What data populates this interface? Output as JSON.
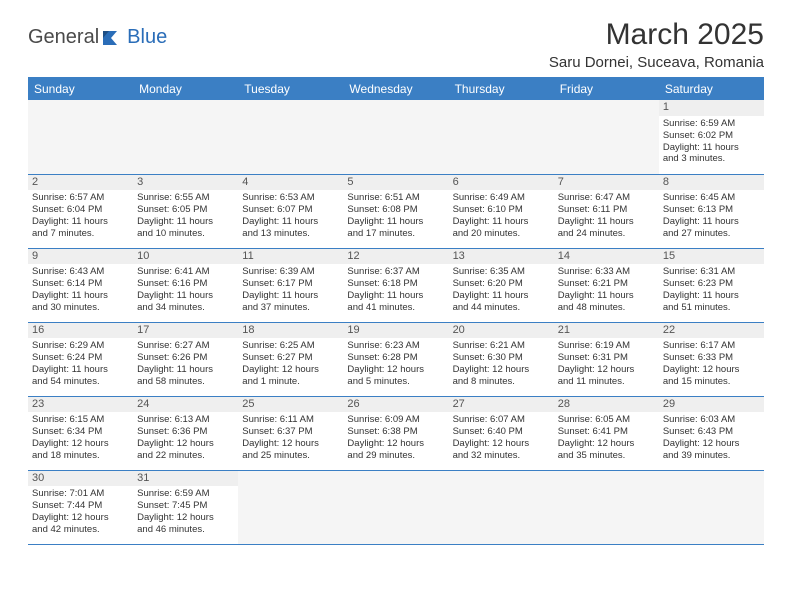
{
  "brand": {
    "part1": "General",
    "part2": "Blue"
  },
  "title": "March 2025",
  "location": "Saru Dornei, Suceava, Romania",
  "colors": {
    "header_bg": "#3b7fc4",
    "header_text": "#ffffff",
    "brand_accent": "#2a6db8",
    "empty_bg": "#f5f5f5",
    "daynum_bg": "#efefef",
    "border": "#3b7fc4"
  },
  "weekdays": [
    "Sunday",
    "Monday",
    "Tuesday",
    "Wednesday",
    "Thursday",
    "Friday",
    "Saturday"
  ],
  "weeks": [
    [
      null,
      null,
      null,
      null,
      null,
      null,
      {
        "n": "1",
        "sr": "Sunrise: 6:59 AM",
        "ss": "Sunset: 6:02 PM",
        "dl1": "Daylight: 11 hours",
        "dl2": "and 3 minutes."
      }
    ],
    [
      {
        "n": "2",
        "sr": "Sunrise: 6:57 AM",
        "ss": "Sunset: 6:04 PM",
        "dl1": "Daylight: 11 hours",
        "dl2": "and 7 minutes."
      },
      {
        "n": "3",
        "sr": "Sunrise: 6:55 AM",
        "ss": "Sunset: 6:05 PM",
        "dl1": "Daylight: 11 hours",
        "dl2": "and 10 minutes."
      },
      {
        "n": "4",
        "sr": "Sunrise: 6:53 AM",
        "ss": "Sunset: 6:07 PM",
        "dl1": "Daylight: 11 hours",
        "dl2": "and 13 minutes."
      },
      {
        "n": "5",
        "sr": "Sunrise: 6:51 AM",
        "ss": "Sunset: 6:08 PM",
        "dl1": "Daylight: 11 hours",
        "dl2": "and 17 minutes."
      },
      {
        "n": "6",
        "sr": "Sunrise: 6:49 AM",
        "ss": "Sunset: 6:10 PM",
        "dl1": "Daylight: 11 hours",
        "dl2": "and 20 minutes."
      },
      {
        "n": "7",
        "sr": "Sunrise: 6:47 AM",
        "ss": "Sunset: 6:11 PM",
        "dl1": "Daylight: 11 hours",
        "dl2": "and 24 minutes."
      },
      {
        "n": "8",
        "sr": "Sunrise: 6:45 AM",
        "ss": "Sunset: 6:13 PM",
        "dl1": "Daylight: 11 hours",
        "dl2": "and 27 minutes."
      }
    ],
    [
      {
        "n": "9",
        "sr": "Sunrise: 6:43 AM",
        "ss": "Sunset: 6:14 PM",
        "dl1": "Daylight: 11 hours",
        "dl2": "and 30 minutes."
      },
      {
        "n": "10",
        "sr": "Sunrise: 6:41 AM",
        "ss": "Sunset: 6:16 PM",
        "dl1": "Daylight: 11 hours",
        "dl2": "and 34 minutes."
      },
      {
        "n": "11",
        "sr": "Sunrise: 6:39 AM",
        "ss": "Sunset: 6:17 PM",
        "dl1": "Daylight: 11 hours",
        "dl2": "and 37 minutes."
      },
      {
        "n": "12",
        "sr": "Sunrise: 6:37 AM",
        "ss": "Sunset: 6:18 PM",
        "dl1": "Daylight: 11 hours",
        "dl2": "and 41 minutes."
      },
      {
        "n": "13",
        "sr": "Sunrise: 6:35 AM",
        "ss": "Sunset: 6:20 PM",
        "dl1": "Daylight: 11 hours",
        "dl2": "and 44 minutes."
      },
      {
        "n": "14",
        "sr": "Sunrise: 6:33 AM",
        "ss": "Sunset: 6:21 PM",
        "dl1": "Daylight: 11 hours",
        "dl2": "and 48 minutes."
      },
      {
        "n": "15",
        "sr": "Sunrise: 6:31 AM",
        "ss": "Sunset: 6:23 PM",
        "dl1": "Daylight: 11 hours",
        "dl2": "and 51 minutes."
      }
    ],
    [
      {
        "n": "16",
        "sr": "Sunrise: 6:29 AM",
        "ss": "Sunset: 6:24 PM",
        "dl1": "Daylight: 11 hours",
        "dl2": "and 54 minutes."
      },
      {
        "n": "17",
        "sr": "Sunrise: 6:27 AM",
        "ss": "Sunset: 6:26 PM",
        "dl1": "Daylight: 11 hours",
        "dl2": "and 58 minutes."
      },
      {
        "n": "18",
        "sr": "Sunrise: 6:25 AM",
        "ss": "Sunset: 6:27 PM",
        "dl1": "Daylight: 12 hours",
        "dl2": "and 1 minute."
      },
      {
        "n": "19",
        "sr": "Sunrise: 6:23 AM",
        "ss": "Sunset: 6:28 PM",
        "dl1": "Daylight: 12 hours",
        "dl2": "and 5 minutes."
      },
      {
        "n": "20",
        "sr": "Sunrise: 6:21 AM",
        "ss": "Sunset: 6:30 PM",
        "dl1": "Daylight: 12 hours",
        "dl2": "and 8 minutes."
      },
      {
        "n": "21",
        "sr": "Sunrise: 6:19 AM",
        "ss": "Sunset: 6:31 PM",
        "dl1": "Daylight: 12 hours",
        "dl2": "and 11 minutes."
      },
      {
        "n": "22",
        "sr": "Sunrise: 6:17 AM",
        "ss": "Sunset: 6:33 PM",
        "dl1": "Daylight: 12 hours",
        "dl2": "and 15 minutes."
      }
    ],
    [
      {
        "n": "23",
        "sr": "Sunrise: 6:15 AM",
        "ss": "Sunset: 6:34 PM",
        "dl1": "Daylight: 12 hours",
        "dl2": "and 18 minutes."
      },
      {
        "n": "24",
        "sr": "Sunrise: 6:13 AM",
        "ss": "Sunset: 6:36 PM",
        "dl1": "Daylight: 12 hours",
        "dl2": "and 22 minutes."
      },
      {
        "n": "25",
        "sr": "Sunrise: 6:11 AM",
        "ss": "Sunset: 6:37 PM",
        "dl1": "Daylight: 12 hours",
        "dl2": "and 25 minutes."
      },
      {
        "n": "26",
        "sr": "Sunrise: 6:09 AM",
        "ss": "Sunset: 6:38 PM",
        "dl1": "Daylight: 12 hours",
        "dl2": "and 29 minutes."
      },
      {
        "n": "27",
        "sr": "Sunrise: 6:07 AM",
        "ss": "Sunset: 6:40 PM",
        "dl1": "Daylight: 12 hours",
        "dl2": "and 32 minutes."
      },
      {
        "n": "28",
        "sr": "Sunrise: 6:05 AM",
        "ss": "Sunset: 6:41 PM",
        "dl1": "Daylight: 12 hours",
        "dl2": "and 35 minutes."
      },
      {
        "n": "29",
        "sr": "Sunrise: 6:03 AM",
        "ss": "Sunset: 6:43 PM",
        "dl1": "Daylight: 12 hours",
        "dl2": "and 39 minutes."
      }
    ],
    [
      {
        "n": "30",
        "sr": "Sunrise: 7:01 AM",
        "ss": "Sunset: 7:44 PM",
        "dl1": "Daylight: 12 hours",
        "dl2": "and 42 minutes."
      },
      {
        "n": "31",
        "sr": "Sunrise: 6:59 AM",
        "ss": "Sunset: 7:45 PM",
        "dl1": "Daylight: 12 hours",
        "dl2": "and 46 minutes."
      },
      null,
      null,
      null,
      null,
      null
    ]
  ]
}
